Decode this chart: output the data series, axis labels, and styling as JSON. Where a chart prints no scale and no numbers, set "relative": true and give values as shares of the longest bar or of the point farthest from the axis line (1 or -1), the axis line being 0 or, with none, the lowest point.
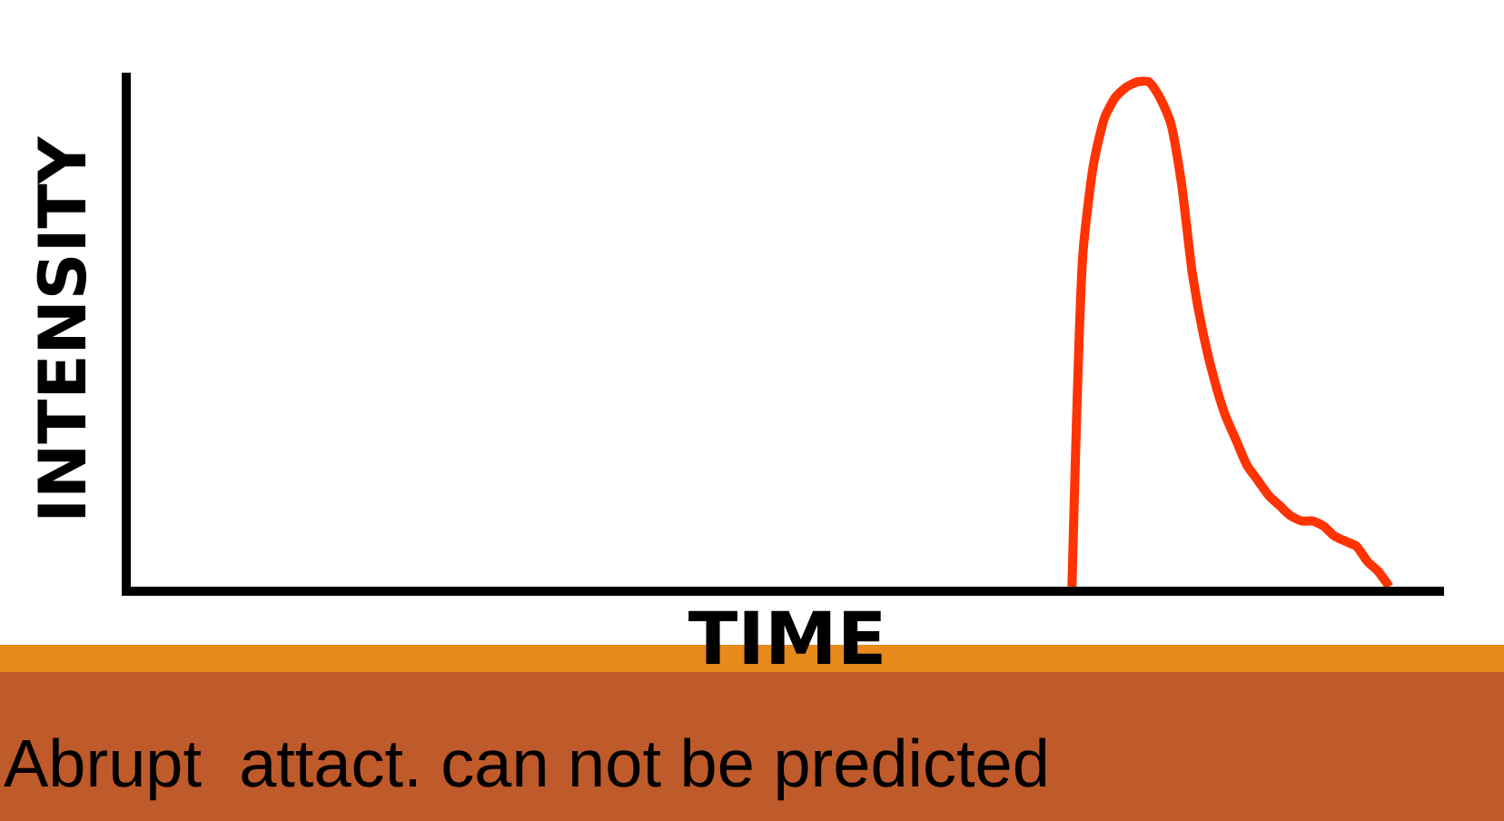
{
  "chart_data": {
    "type": "line",
    "relative": true,
    "xlabel": "TIME",
    "ylabel": "INTENSITY",
    "annotations": [
      "Abrupt  attact. can not be predicted"
    ],
    "categories": [
      null,
      null,
      null,
      null,
      null,
      null,
      null,
      null,
      null,
      null,
      null,
      null,
      null,
      null,
      null,
      null,
      null,
      null,
      null,
      null,
      null,
      null,
      null,
      null,
      null,
      null,
      null,
      null,
      null,
      null,
      null,
      null,
      null,
      null,
      null,
      null,
      null,
      null,
      null,
      null,
      null,
      null,
      null,
      null,
      null,
      null,
      null,
      null,
      null,
      null,
      null,
      null,
      null,
      null,
      null,
      null,
      null,
      null,
      null,
      null,
      null,
      null,
      null,
      null,
      null,
      null,
      null,
      null,
      null,
      null,
      null,
      null,
      null,
      null,
      null,
      null,
      null,
      null,
      null,
      null,
      null,
      null,
      null,
      null,
      null,
      null,
      null,
      null,
      null,
      null,
      null,
      null,
      null,
      null,
      null,
      null,
      null,
      null,
      null,
      null,
      null,
      null,
      null,
      null,
      null,
      null,
      null,
      null,
      null,
      null,
      null,
      null,
      null,
      null,
      null,
      null,
      null,
      null,
      null,
      null,
      null
    ],
    "series": [
      {
        "color": "#ff3300",
        "values": [
          null,
          null,
          null,
          null,
          null,
          null,
          null,
          null,
          null,
          null,
          null,
          null,
          null,
          null,
          null,
          null,
          null,
          null,
          null,
          null,
          null,
          null,
          null,
          null,
          null,
          null,
          null,
          null,
          null,
          null,
          null,
          null,
          null,
          null,
          null,
          null,
          null,
          null,
          null,
          null,
          null,
          null,
          null,
          null,
          null,
          null,
          null,
          null,
          null,
          null,
          null,
          null,
          null,
          null,
          null,
          null,
          null,
          null,
          null,
          null,
          null,
          null,
          null,
          null,
          null,
          null,
          null,
          null,
          null,
          null,
          null,
          null,
          null,
          null,
          null,
          null,
          null,
          null,
          null,
          null,
          null,
          null,
          null,
          null,
          null,
          null,
          0,
          0.66,
          0.84,
          0.93,
          0.97,
          0.99,
          1,
          1,
          0.97,
          0.92,
          0.8,
          0.62,
          0.5,
          0.41,
          0.34,
          0.29,
          0.24,
          0.21,
          0.18,
          0.16,
          0.14,
          0.13,
          0.13,
          0.12,
          0.1,
          0.09,
          0.08,
          0.05,
          0.03,
          0,
          null,
          null,
          null,
          null,
          null
        ]
      }
    ]
  }
}
